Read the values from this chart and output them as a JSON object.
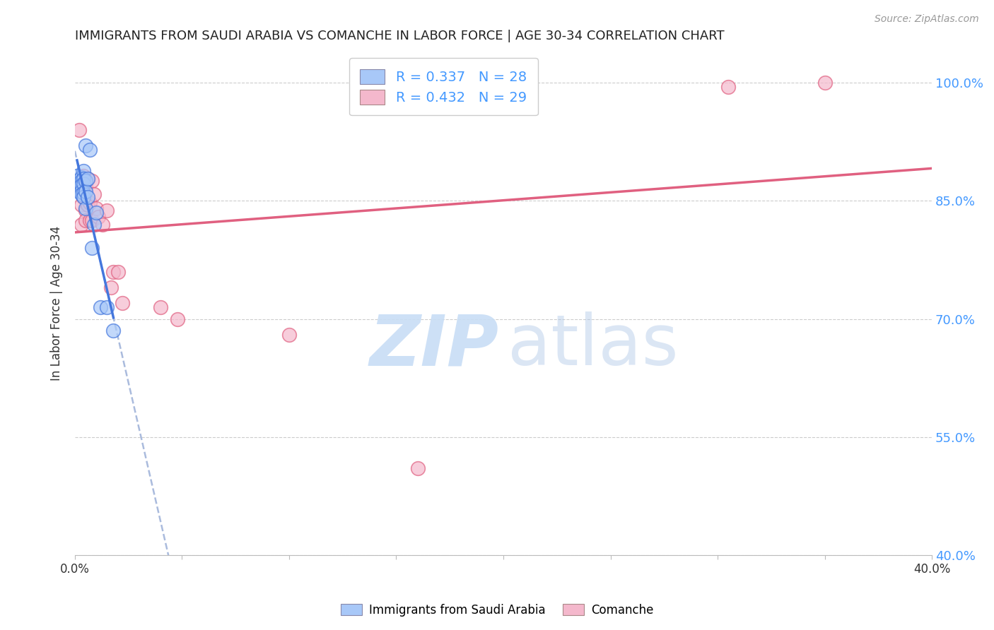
{
  "title": "IMMIGRANTS FROM SAUDI ARABIA VS COMANCHE IN LABOR FORCE | AGE 30-34 CORRELATION CHART",
  "source": "Source: ZipAtlas.com",
  "ylabel": "In Labor Force | Age 30-34",
  "xlabel": "",
  "xlim": [
    0.0,
    0.4
  ],
  "ylim": [
    0.4,
    1.04
  ],
  "yticks": [
    0.4,
    0.55,
    0.7,
    0.85,
    1.0
  ],
  "ytick_labels": [
    "40.0%",
    "55.0%",
    "70.0%",
    "85.0%",
    "100.0%"
  ],
  "xticks": [
    0.0,
    0.05,
    0.1,
    0.15,
    0.2,
    0.25,
    0.3,
    0.35,
    0.4
  ],
  "xtick_labels": [
    "0.0%",
    "",
    "",
    "",
    "",
    "",
    "",
    "",
    "40.0%"
  ],
  "legend_r1": "R = 0.337",
  "legend_n1": "N = 28",
  "legend_r2": "R = 0.432",
  "legend_n2": "N = 29",
  "color_blue": "#a8c8f8",
  "color_pink": "#f4b8cc",
  "line_color_blue": "#4477dd",
  "line_color_pink": "#e06080",
  "line_color_dashed": "#aabbdd",
  "watermark_zip": "ZIP",
  "watermark_atlas": "atlas",
  "saudi_x": [
    0.001,
    0.001,
    0.002,
    0.002,
    0.002,
    0.003,
    0.003,
    0.003,
    0.003,
    0.003,
    0.004,
    0.004,
    0.004,
    0.004,
    0.004,
    0.005,
    0.005,
    0.005,
    0.005,
    0.006,
    0.006,
    0.007,
    0.008,
    0.009,
    0.01,
    0.012,
    0.015,
    0.018
  ],
  "saudi_y": [
    0.882,
    0.875,
    0.87,
    0.868,
    0.862,
    0.88,
    0.875,
    0.87,
    0.862,
    0.858,
    0.888,
    0.878,
    0.872,
    0.86,
    0.855,
    0.92,
    0.875,
    0.862,
    0.84,
    0.878,
    0.855,
    0.915,
    0.79,
    0.82,
    0.835,
    0.715,
    0.715,
    0.685
  ],
  "comanche_x": [
    0.002,
    0.003,
    0.003,
    0.004,
    0.004,
    0.005,
    0.005,
    0.005,
    0.006,
    0.006,
    0.007,
    0.007,
    0.008,
    0.008,
    0.009,
    0.01,
    0.011,
    0.013,
    0.015,
    0.017,
    0.018,
    0.02,
    0.022,
    0.04,
    0.048,
    0.1,
    0.16,
    0.305,
    0.35
  ],
  "comanche_y": [
    0.94,
    0.845,
    0.82,
    0.882,
    0.855,
    0.868,
    0.838,
    0.825,
    0.878,
    0.845,
    0.848,
    0.825,
    0.875,
    0.825,
    0.858,
    0.84,
    0.83,
    0.82,
    0.838,
    0.74,
    0.76,
    0.76,
    0.72,
    0.715,
    0.7,
    0.68,
    0.51,
    0.995,
    1.0
  ],
  "background_color": "#ffffff",
  "grid_color": "#cccccc"
}
